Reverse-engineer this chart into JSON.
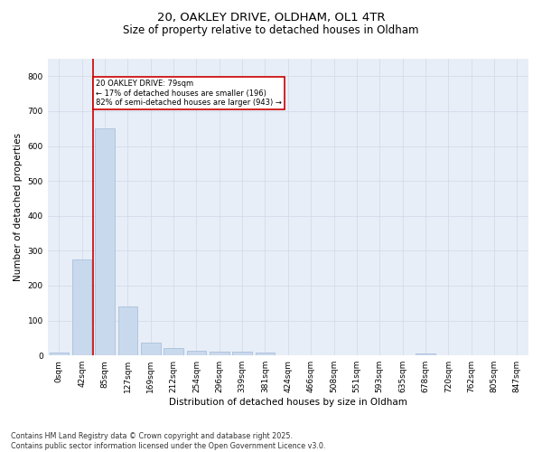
{
  "title_line1": "20, OAKLEY DRIVE, OLDHAM, OL1 4TR",
  "title_line2": "Size of property relative to detached houses in Oldham",
  "xlabel": "Distribution of detached houses by size in Oldham",
  "ylabel": "Number of detached properties",
  "categories": [
    "0sqm",
    "42sqm",
    "85sqm",
    "127sqm",
    "169sqm",
    "212sqm",
    "254sqm",
    "296sqm",
    "339sqm",
    "381sqm",
    "424sqm",
    "466sqm",
    "508sqm",
    "551sqm",
    "593sqm",
    "635sqm",
    "678sqm",
    "720sqm",
    "762sqm",
    "805sqm",
    "847sqm"
  ],
  "values": [
    8,
    275,
    650,
    140,
    38,
    20,
    14,
    10,
    10,
    8,
    0,
    0,
    0,
    0,
    0,
    0,
    5,
    0,
    0,
    0,
    0
  ],
  "bar_color": "#c9d9ed",
  "bar_edge_color": "#a0b8d8",
  "grid_color": "#d0d8e8",
  "bg_color": "#e8eef7",
  "vline_color": "#cc0000",
  "annotation_text": "20 OAKLEY DRIVE: 79sqm\n← 17% of detached houses are smaller (196)\n82% of semi-detached houses are larger (943) →",
  "annotation_box_color": "#cc0000",
  "ylim": [
    0,
    850
  ],
  "yticks": [
    0,
    100,
    200,
    300,
    400,
    500,
    600,
    700,
    800
  ],
  "footer": "Contains HM Land Registry data © Crown copyright and database right 2025.\nContains public sector information licensed under the Open Government Licence v3.0.",
  "title_fontsize": 9.5,
  "subtitle_fontsize": 8.5,
  "label_fontsize": 7.5,
  "tick_fontsize": 6.5,
  "footer_fontsize": 5.8
}
